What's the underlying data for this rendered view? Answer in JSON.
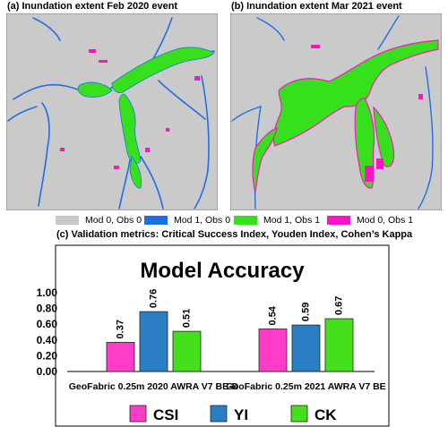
{
  "maps": {
    "panel_a_title": "(a) Inundation extent Feb 2020 event",
    "panel_b_title": "(b) Inundation extent Mar 2021 event",
    "legend": [
      {
        "label": "Mod 0, Obs 0",
        "color": "#c8c8c8"
      },
      {
        "label": "Mod 1, Obs 0",
        "color": "#1e6fe6"
      },
      {
        "label": "Mod 1, Obs 1",
        "color": "#36e01c"
      },
      {
        "label": "Mod 0, Obs 1",
        "color": "#ff14c4"
      }
    ],
    "background_color": "#cacaca"
  },
  "chart_panel_title": "(c) Validation metrics: Critical Success Index, Youden Index, Cohen’s Kappa",
  "chart_data": {
    "type": "bar",
    "title": "Model Accuracy",
    "categories": [
      "GeoFabric 0.25m 2020 AWRA V7 BE-D",
      "GeoFabric 0.25m 2021 AWRA V7 BE"
    ],
    "series": [
      {
        "name": "CSI",
        "values": [
          0.37,
          0.54
        ],
        "color": "#ff3cc8",
        "value_labels": [
          "0.37",
          "0.54"
        ]
      },
      {
        "name": "YI",
        "values": [
          0.76,
          0.59
        ],
        "color": "#2a7ec4",
        "value_labels": [
          "0.76",
          "0.59"
        ]
      },
      {
        "name": "CK",
        "values": [
          0.51,
          0.67
        ],
        "color": "#44e01c",
        "value_labels": [
          "0.51",
          "0.67"
        ]
      }
    ],
    "ylim": [
      0,
      1
    ],
    "yticks": [
      "0.00",
      "0.20",
      "0.40",
      "0.60",
      "0.80",
      "1.00"
    ],
    "grid": false,
    "legend_position": "bottom"
  }
}
